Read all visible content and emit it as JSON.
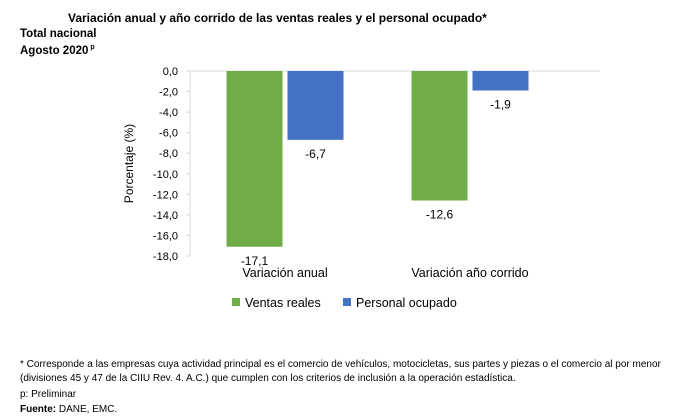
{
  "header": {
    "title": "Variación anual y año corrido de las ventas reales y el personal ocupado*",
    "line1": "Total nacional",
    "line2": "Agosto 2020",
    "line2_sup": "p"
  },
  "chart_data": {
    "type": "bar",
    "categories": [
      "Variación anual",
      "Variación año corrido"
    ],
    "series": [
      {
        "name": "Ventas reales",
        "values": [
          -17.1,
          -12.6
        ],
        "color": "#70ad47"
      },
      {
        "name": "Personal ocupado",
        "values": [
          -6.7,
          -1.9
        ],
        "color": "#4472c4"
      }
    ],
    "data_labels": [
      [
        "-17,1",
        "-12,6"
      ],
      [
        "-6,7",
        "-1,9"
      ]
    ],
    "ylabel": "Porcentaje (%)",
    "ylim": [
      -18,
      0
    ],
    "yticks": [
      "0,0",
      "-2,0",
      "-4,0",
      "-6,0",
      "-8,0",
      "-10,0",
      "-12,0",
      "-14,0",
      "-16,0",
      "-18,0"
    ],
    "grid": false,
    "legend_position": "bottom"
  },
  "footnotes": {
    "note": "* Corresponde a las empresas cuya actividad principal es el comercio de vehículos, motocicletas, sus partes y piezas o el comercio al por menor (divisiones 45 y 47 de la CIIU Rev. 4. A.C.) que cumplen con los criterios de inclusión a la operación estadística.",
    "preliminar": "p: Preliminar",
    "source_label": "Fuente:",
    "source_value": "DANE, EMC."
  }
}
